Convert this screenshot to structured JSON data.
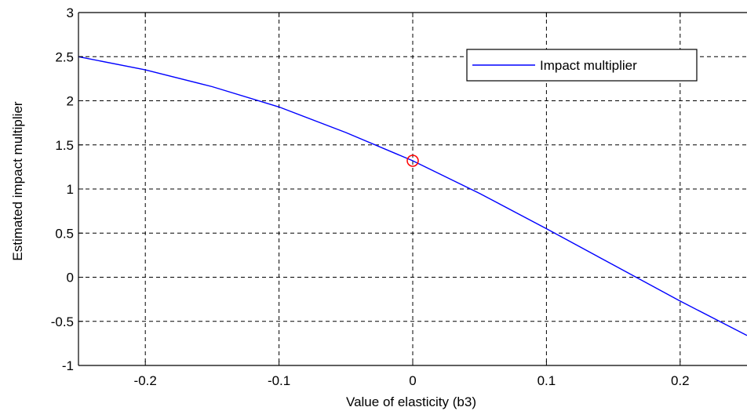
{
  "chart_data": {
    "type": "line",
    "xlabel": "Value of elasticity (b3)",
    "ylabel": "Estimated impact multiplier",
    "xlim": [
      -0.25,
      0.25
    ],
    "ylim": [
      -1,
      3
    ],
    "xticks": [
      -0.2,
      -0.1,
      0,
      0.1,
      0.2
    ],
    "xtick_labels": [
      "-0.2",
      "-0.1",
      "0",
      "0.1",
      "0.2"
    ],
    "yticks": [
      -1,
      -0.5,
      0,
      0.5,
      1,
      1.5,
      2,
      2.5,
      3
    ],
    "ytick_labels": [
      "-1",
      "-0.5",
      "0",
      "0.5",
      "1",
      "1.5",
      "2",
      "2.5",
      "3"
    ],
    "grid": true,
    "legend_position": "top-right",
    "series": [
      {
        "name": "Impact multiplier",
        "color": "#0000ff",
        "x": [
          -0.25,
          -0.2,
          -0.15,
          -0.1,
          -0.05,
          0,
          0.05,
          0.1,
          0.15,
          0.2,
          0.25
        ],
        "y": [
          2.5,
          2.35,
          2.16,
          1.93,
          1.64,
          1.32,
          0.95,
          0.55,
          0.14,
          -0.27,
          -0.66
        ]
      }
    ],
    "markers": [
      {
        "x": 0,
        "y": 1.32,
        "shape": "circle",
        "color": "#ff0000"
      }
    ]
  }
}
